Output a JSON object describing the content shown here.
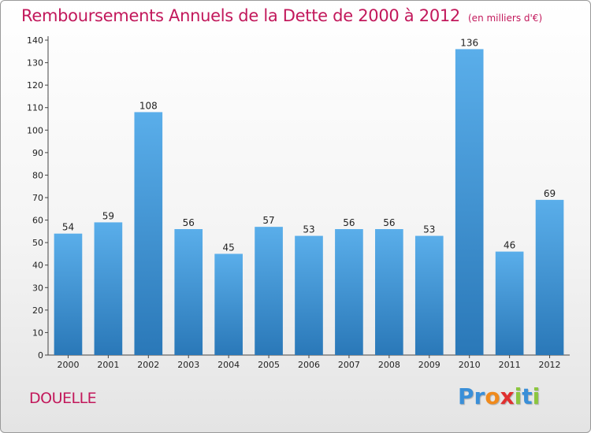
{
  "title": "Remboursements Annuels de la Dette de 2000 à 2012",
  "unit": "(en milliers d'€)",
  "commune": "DOUELLE",
  "logo": {
    "letters": [
      "P",
      "r",
      "o",
      "x",
      "i",
      "t",
      "i"
    ],
    "colors": [
      "#3a8fd8",
      "#3a8fd8",
      "#f08a1c",
      "#e03030",
      "#8cc63f",
      "#3a8fd8",
      "#8cc63f"
    ]
  },
  "colors": {
    "bar_top": "#5aaeea",
    "bar_bottom": "#2a78b8",
    "accent": "#c2185b"
  },
  "chart_data": {
    "type": "bar",
    "categories": [
      "2000",
      "2001",
      "2002",
      "2003",
      "2004",
      "2005",
      "2006",
      "2007",
      "2008",
      "2009",
      "2010",
      "2011",
      "2012"
    ],
    "values": [
      54,
      59,
      108,
      56,
      45,
      57,
      53,
      56,
      56,
      53,
      136,
      46,
      69
    ],
    "ylim": [
      0,
      140
    ],
    "yticks": [
      0,
      10,
      20,
      30,
      40,
      50,
      60,
      70,
      80,
      90,
      100,
      110,
      120,
      130,
      140
    ],
    "grid": false,
    "legend": "none"
  }
}
